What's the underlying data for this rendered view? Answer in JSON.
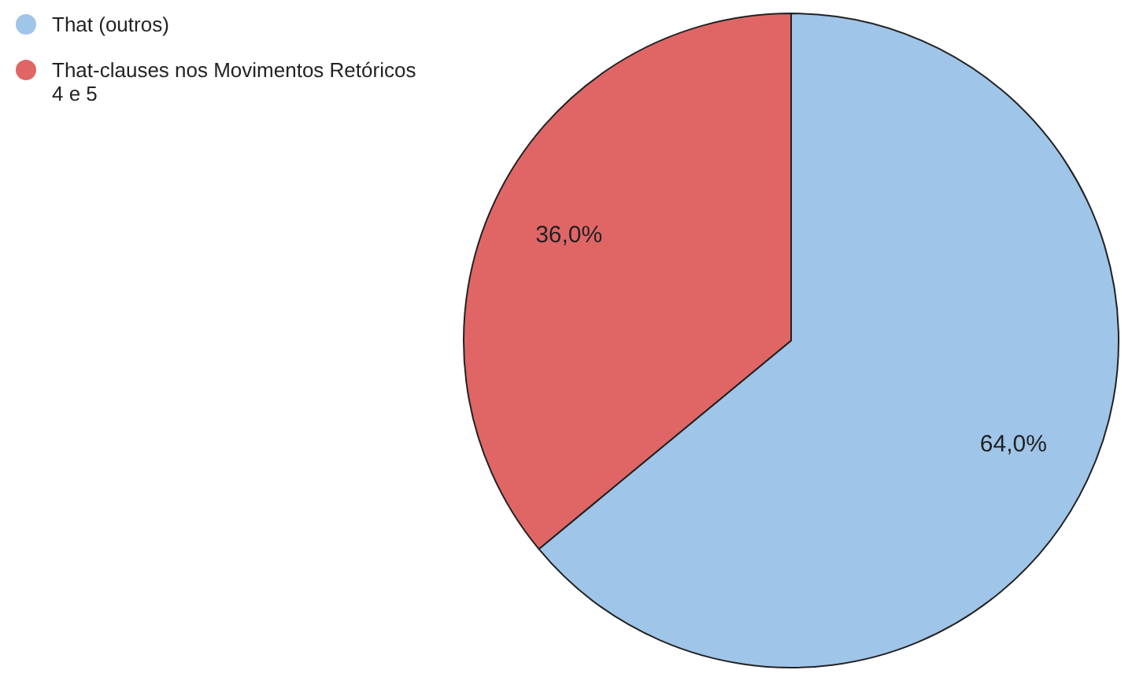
{
  "chart_data": {
    "type": "pie",
    "categories": [
      "That (outros)",
      "That-clauses nos Movimentos Retóricos 4 e 5"
    ],
    "values": [
      64,
      36
    ],
    "colors": [
      "#9fc5e8",
      "#e06666"
    ],
    "value_labels": [
      "64,0%",
      "36,0%"
    ],
    "legend": "top left"
  }
}
